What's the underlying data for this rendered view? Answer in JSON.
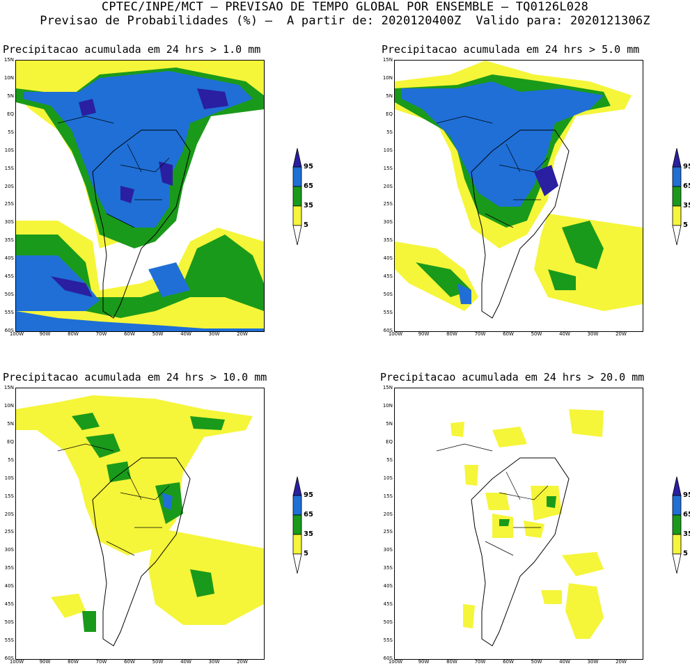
{
  "header": {
    "line1": "CPTEC/INPE/MCT – PREVISAO DE TEMPO GLOBAL POR ENSEMBLE – TQ0126L028",
    "line2": "Previsao de Probabilidades (%) –  A partir de: 2020120400Z  Valido para: 2020121306Z"
  },
  "axes": {
    "lat_labels": [
      "15N",
      "10N",
      "5N",
      "EQ",
      "5S",
      "10S",
      "15S",
      "20S",
      "25S",
      "30S",
      "35S",
      "40S",
      "45S",
      "50S",
      "55S",
      "60S"
    ],
    "lon_labels": [
      "100W",
      "90W",
      "80W",
      "70W",
      "60W",
      "50W",
      "40W",
      "30W",
      "20W"
    ]
  },
  "colorbar": {
    "levels": [
      "95",
      "65",
      "35",
      "5"
    ],
    "colors": {
      "c95": "#2a1fa0",
      "c65": "#1f6fd6",
      "c35": "#1a9a1a",
      "c5": "#f5f53a",
      "below": "#ffffff"
    }
  },
  "panels": [
    {
      "title": "Precipitacao acumulada em 24 hrs > 1.0 mm"
    },
    {
      "title": "Precipitacao acumulada em 24 hrs > 5.0 mm"
    },
    {
      "title": "Precipitacao acumulada em 24 hrs > 10.0 mm"
    },
    {
      "title": "Precipitacao acumulada em 24 hrs > 20.0 mm"
    }
  ]
}
